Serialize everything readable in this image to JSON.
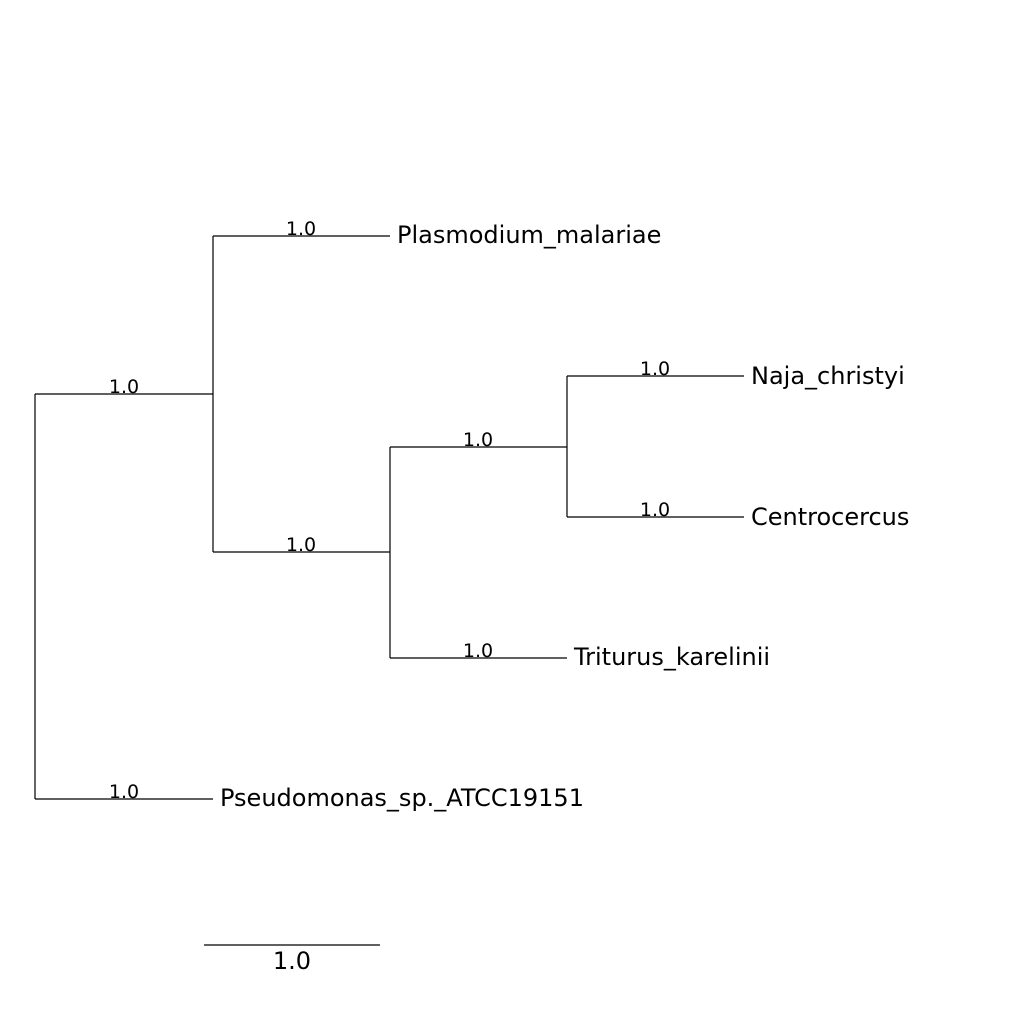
{
  "tree": {
    "leaves": [
      {
        "name": "Plasmodium_malariae",
        "support": "1.0"
      },
      {
        "name": "Naja_christyi",
        "support": "1.0"
      },
      {
        "name": "Centrocercus",
        "support": "1.0"
      },
      {
        "name": "Triturus_karelinii",
        "support": "1.0"
      },
      {
        "name": "Pseudomonas_sp._ATCC19151",
        "support": "1.0"
      }
    ],
    "internal_nodes": [
      {
        "id": "clade-all-but-pseudomonas",
        "support": "1.0"
      },
      {
        "id": "clade-vertebrates",
        "support": "1.0"
      },
      {
        "id": "clade-naja-centrocercus",
        "support": "1.0"
      }
    ]
  },
  "scale_bar": {
    "label": "1.0"
  }
}
